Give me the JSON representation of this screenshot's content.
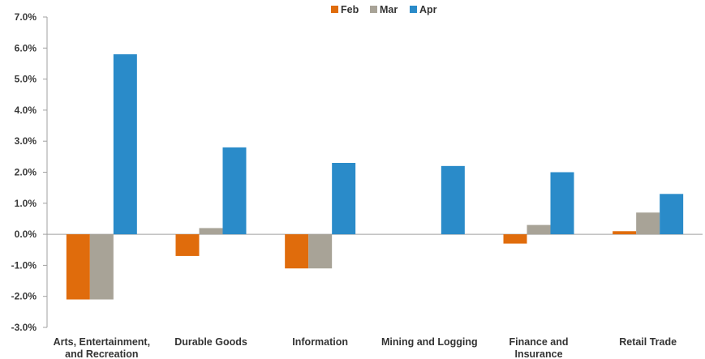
{
  "chart_data": {
    "type": "bar",
    "categories": [
      [
        "Arts, Entertainment,",
        "and Recreation"
      ],
      [
        "Durable Goods"
      ],
      [
        "Information"
      ],
      [
        "Mining and Logging"
      ],
      [
        "Finance and",
        "Insurance"
      ],
      [
        "Retail Trade"
      ]
    ],
    "series": [
      {
        "name": "Feb",
        "color": "#e06c0c",
        "values": [
          -2.1,
          -0.7,
          -1.1,
          0.0,
          -0.3,
          0.1
        ]
      },
      {
        "name": "Mar",
        "color": "#a8a397",
        "values": [
          -2.1,
          0.2,
          -1.1,
          0.0,
          0.3,
          0.7
        ]
      },
      {
        "name": "Apr",
        "color": "#2a8bc9",
        "values": [
          5.8,
          2.8,
          2.3,
          2.2,
          2.0,
          1.3
        ]
      }
    ],
    "y_ticks": [
      "-3.0%",
      "-2.0%",
      "-1.0%",
      "0.0%",
      "1.0%",
      "2.0%",
      "3.0%",
      "4.0%",
      "5.0%",
      "6.0%",
      "7.0%"
    ],
    "ylim": [
      -3,
      7
    ],
    "legend_position": "top-center",
    "grid": false
  },
  "colors": {
    "axis": "#a0a0a0"
  }
}
